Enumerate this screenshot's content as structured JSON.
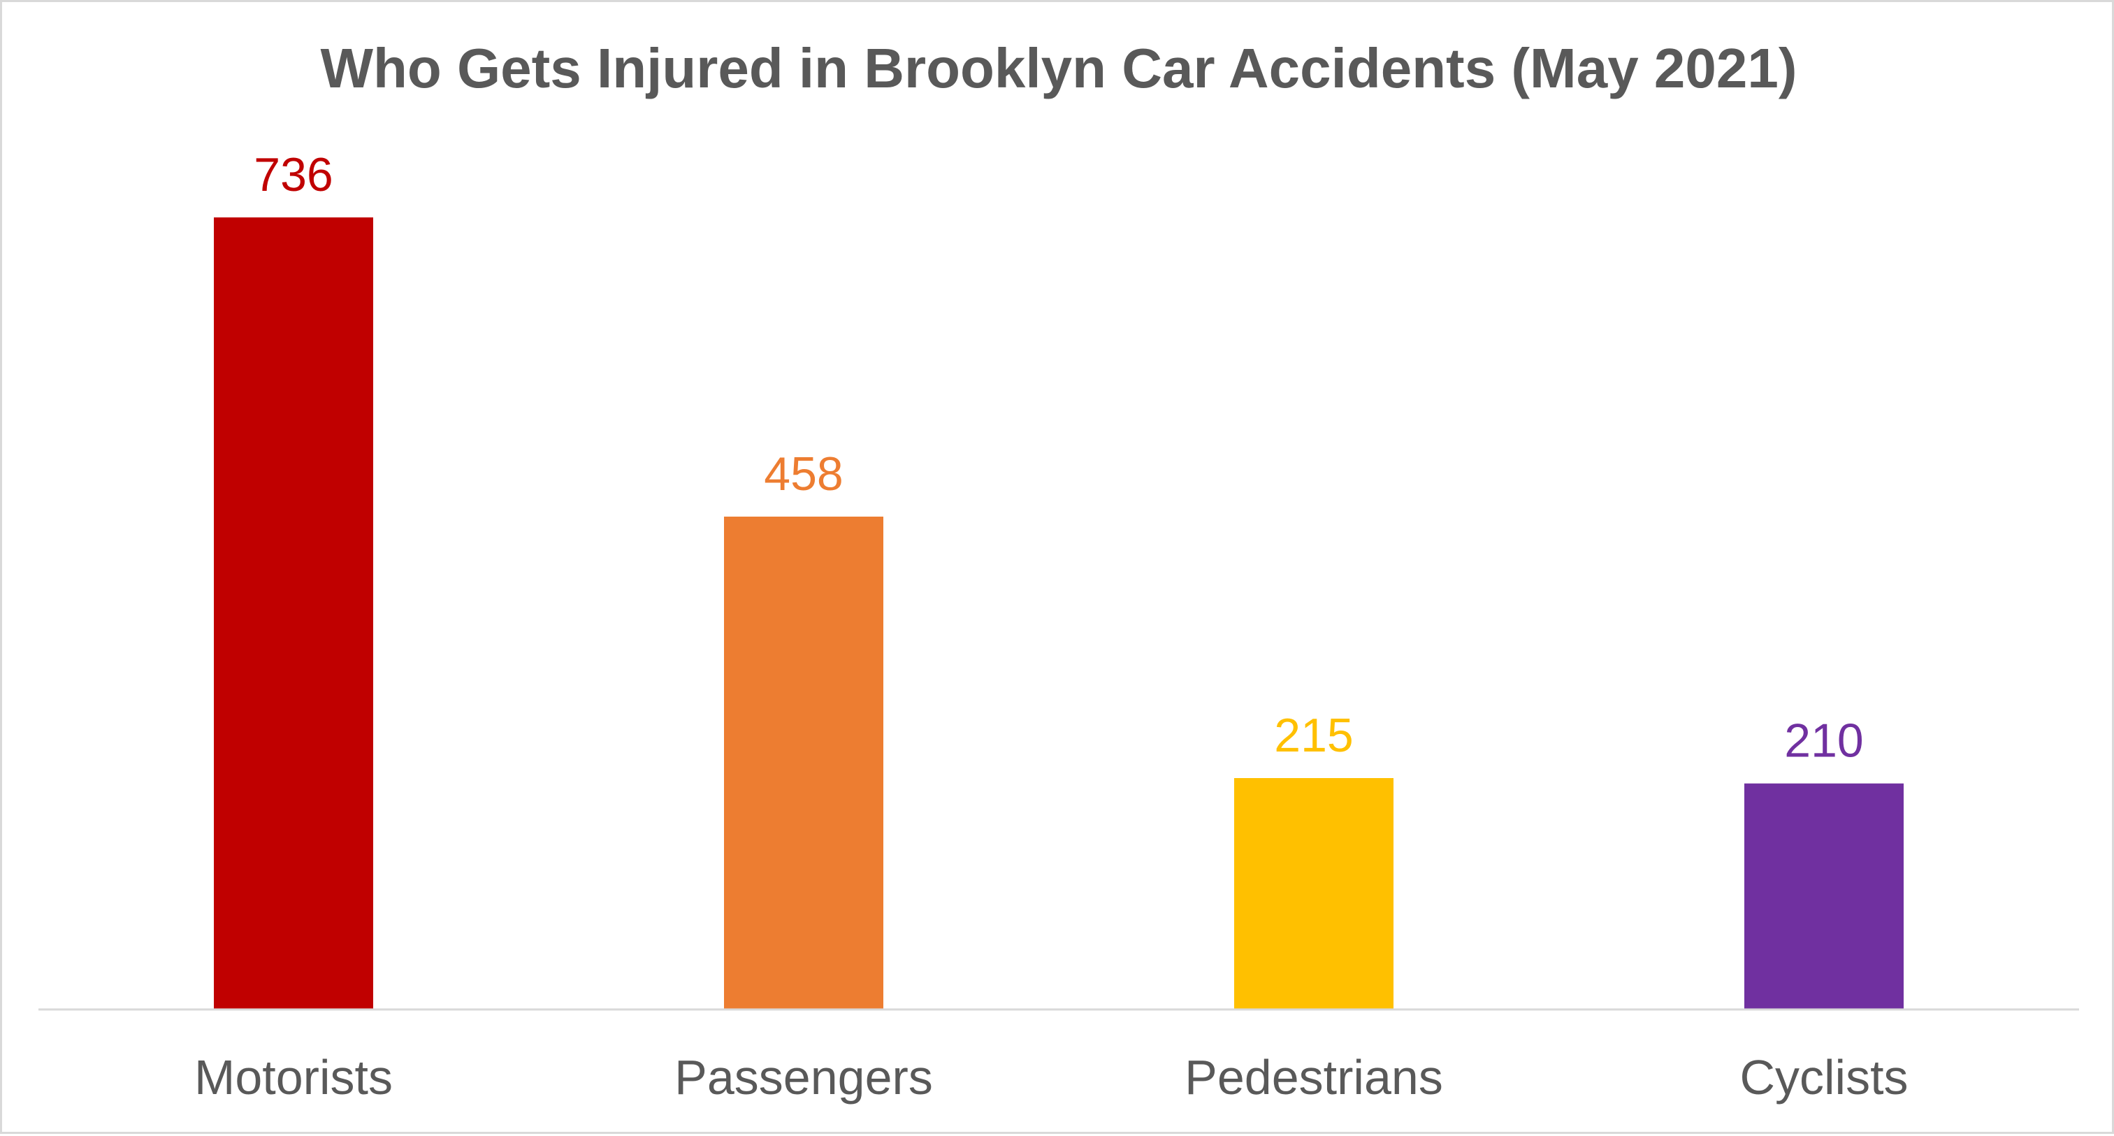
{
  "chart_data": {
    "type": "bar",
    "title": "Who Gets Injured in Brooklyn Car Accidents (May 2021)",
    "xlabel": "",
    "ylabel": "",
    "categories": [
      "Motorists",
      "Passengers",
      "Pedestrians",
      "Cyclists"
    ],
    "values": [
      736,
      458,
      215,
      210
    ],
    "data_labels": [
      "736",
      "458",
      "215",
      "210"
    ],
    "colors": [
      "#c00000",
      "#ed7d31",
      "#ffc000",
      "#7030a0"
    ],
    "ylim": [
      0,
      800
    ],
    "grid": false,
    "legend": "none"
  }
}
